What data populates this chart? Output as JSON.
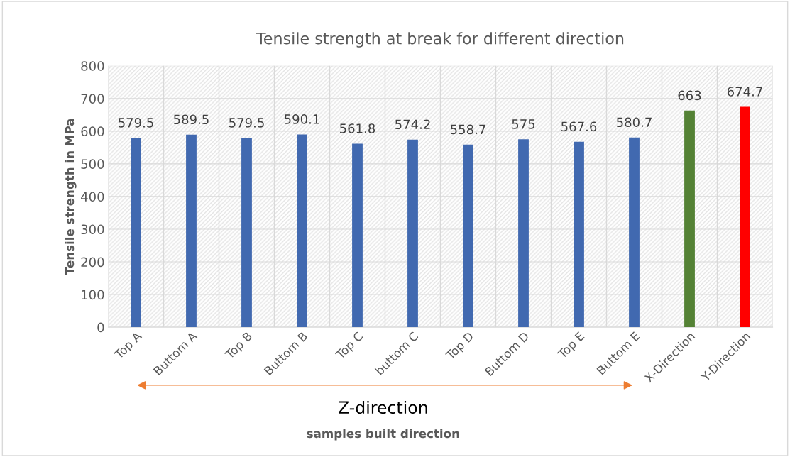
{
  "chart_data": {
    "type": "bar",
    "title": "Tensile strength at break for different direction",
    "xlabel": "samples built direction",
    "ylabel": "Tensile strength in MPa",
    "categories": [
      "Top A",
      "Buttom A",
      "Top B",
      "Buttom B",
      "Top C",
      "buttom C",
      "Top D",
      "Buttom D",
      "Top E",
      "Buttom E",
      "X-Direction",
      "Y-Direction"
    ],
    "values": [
      579.5,
      589.5,
      579.5,
      590.1,
      561.8,
      574.2,
      558.7,
      575,
      567.6,
      580.7,
      663,
      674.7
    ],
    "colors": [
      "#4169b0",
      "#4169b0",
      "#4169b0",
      "#4169b0",
      "#4169b0",
      "#4169b0",
      "#4169b0",
      "#4169b0",
      "#4169b0",
      "#4169b0",
      "#548235",
      "#ff0000"
    ],
    "ylim": [
      0,
      800
    ],
    "yticks": [
      0,
      100,
      200,
      300,
      400,
      500,
      600,
      700,
      800
    ],
    "grid": true,
    "data_labels": true,
    "annotations": [
      "Z-direction"
    ]
  }
}
